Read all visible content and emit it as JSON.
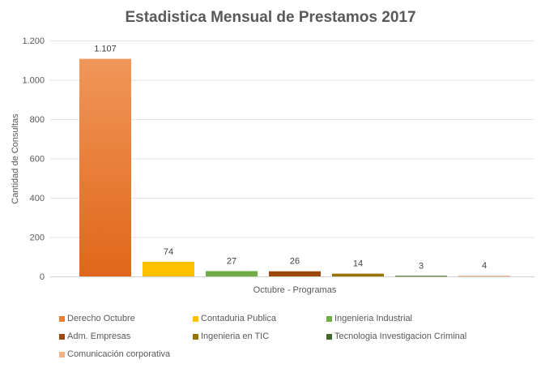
{
  "chart_data": {
    "type": "bar",
    "title": "Estadistica Mensual de Prestamos 2017",
    "xlabel": "Octubre - Programas",
    "ylabel": "Cantidad de Consultas",
    "ylim": [
      0,
      1200
    ],
    "yticks": [
      0,
      200,
      400,
      600,
      800,
      1000,
      1200
    ],
    "ytick_labels": [
      "0",
      "200",
      "400",
      "600",
      "800",
      "1.000",
      "1.200"
    ],
    "grid": true,
    "legend_position": "bottom",
    "series": [
      {
        "name": "Derecho Octubre",
        "value": 1107,
        "label": "1.107",
        "color": "#ED7D31"
      },
      {
        "name": "Contaduria Publica",
        "value": 74,
        "label": "74",
        "color": "#FFC000"
      },
      {
        "name": "Ingenieria Industrial",
        "value": 27,
        "label": "27",
        "color": "#70AD47"
      },
      {
        "name": "Adm. Empresas",
        "value": 26,
        "label": "26",
        "color": "#9E480E"
      },
      {
        "name": "Ingenieria en TIC",
        "value": 14,
        "label": "14",
        "color": "#997300"
      },
      {
        "name": "Tecnologia Investigacion Criminal",
        "value": 3,
        "label": "3",
        "color": "#43682B"
      },
      {
        "name": "Comunicación corporativa",
        "value": 4,
        "label": "4",
        "color": "#F4B183"
      }
    ]
  }
}
